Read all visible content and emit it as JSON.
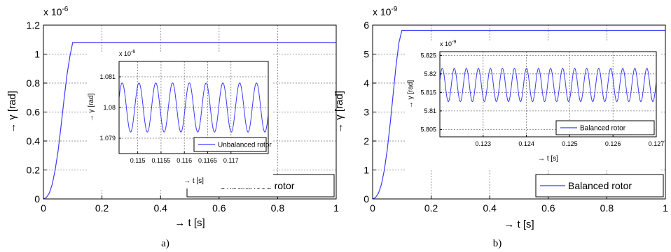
{
  "figure": {
    "captions": [
      "a)",
      "b)"
    ]
  },
  "chart_data": [
    {
      "id": "a",
      "type": "line",
      "xlabel": "→ t [s]",
      "ylabel": "→ γ [rad]",
      "y_exponent_label": "x 10",
      "y_exponent_power": "-6",
      "xlim": [
        0,
        1
      ],
      "ylim": [
        0,
        1.2
      ],
      "xticks": [
        0,
        0.2,
        0.4,
        0.6,
        0.8,
        1
      ],
      "xtick_labels": [
        "0",
        "0.2",
        "0.4",
        "0.6",
        "0.8",
        "1"
      ],
      "yticks": [
        0,
        0.2,
        0.4,
        0.6,
        0.8,
        1,
        1.2
      ],
      "ytick_labels": [
        "0",
        "0.2",
        "0.4",
        "0.6",
        "0.8",
        "1",
        "1.2"
      ],
      "grid": true,
      "legend": {
        "position": "bottom-right",
        "entries": [
          "Unbalanced rotor"
        ]
      },
      "series": [
        {
          "name": "Unbalanced rotor",
          "color": "#3a3aff",
          "x": [
            0,
            0.01,
            0.02,
            0.03,
            0.04,
            0.05,
            0.06,
            0.07,
            0.08,
            0.09,
            0.1,
            0.2,
            0.4,
            0.6,
            0.8,
            1.0
          ],
          "y": [
            0,
            0.01,
            0.04,
            0.1,
            0.2,
            0.33,
            0.5,
            0.68,
            0.85,
            0.98,
            1.08,
            1.08,
            1.08,
            1.08,
            1.08,
            1.08
          ]
        }
      ],
      "inset": {
        "type": "line",
        "xlabel": "→ t [s]",
        "ylabel": "→ γ [rad]",
        "y_exponent_label": "x 10",
        "y_exponent_power": "-6",
        "xlim": [
          0.1146,
          0.1178
        ],
        "ylim": [
          1.0785,
          1.0815
        ],
        "xticks": [
          0.115,
          0.1155,
          0.116,
          0.1165,
          0.117
        ],
        "xtick_labels": [
          "0.115",
          "0.1155",
          "0.116",
          "0.1165",
          "0.117"
        ],
        "yticks": [
          1.079,
          1.08,
          1.081
        ],
        "ytick_labels": [
          "1.079",
          "1.08",
          "1.081"
        ],
        "grid": true,
        "legend": {
          "position": "bottom-right",
          "entries": [
            "Unbalanced rotor"
          ]
        },
        "series": [
          {
            "name": "Unbalanced rotor",
            "color": "#3a3aff",
            "mean": 1.08,
            "amplitude": 0.0008,
            "period": 0.00036,
            "phase": 0.4
          }
        ]
      }
    },
    {
      "id": "b",
      "type": "line",
      "xlabel": "→ t [s]",
      "ylabel": "→ γ [rad]",
      "y_exponent_label": "x 10",
      "y_exponent_power": "-9",
      "xlim": [
        0,
        1
      ],
      "ylim": [
        0,
        6
      ],
      "xticks": [
        0,
        0.2,
        0.4,
        0.6,
        0.8,
        1
      ],
      "xtick_labels": [
        "0",
        "0.2",
        "0.4",
        "0.6",
        "0.8",
        "1"
      ],
      "yticks": [
        0,
        1,
        2,
        3,
        4,
        5,
        6
      ],
      "ytick_labels": [
        "0",
        "1",
        "2",
        "3",
        "4",
        "5",
        "6"
      ],
      "grid": true,
      "legend": {
        "position": "bottom-right",
        "entries": [
          "Balanced rotor"
        ]
      },
      "series": [
        {
          "name": "Balanced rotor",
          "color": "#3a3aff",
          "x": [
            0,
            0.01,
            0.02,
            0.03,
            0.04,
            0.05,
            0.06,
            0.07,
            0.08,
            0.09,
            0.1,
            0.2,
            0.4,
            0.6,
            0.8,
            1.0
          ],
          "y": [
            0,
            0.05,
            0.2,
            0.5,
            1.0,
            1.7,
            2.6,
            3.6,
            4.6,
            5.4,
            5.82,
            5.82,
            5.82,
            5.82,
            5.82,
            5.82
          ]
        }
      ],
      "inset": {
        "type": "line",
        "xlabel": "→ t [s]",
        "ylabel": "→ γ [rad]",
        "y_exponent_label": "x 10",
        "y_exponent_power": "-9",
        "xlim": [
          0.122,
          0.127
        ],
        "ylim": [
          5.803,
          5.826
        ],
        "xticks": [
          0.123,
          0.124,
          0.125,
          0.126,
          0.127
        ],
        "xtick_labels": [
          "0.123",
          "0.124",
          "0.125",
          "0.126",
          "0.127"
        ],
        "yticks": [
          5.805,
          5.81,
          5.815,
          5.82,
          5.825
        ],
        "ytick_labels": [
          "5.805",
          "5.81",
          "5.815",
          "5.82",
          "5.825"
        ],
        "grid": true,
        "legend": {
          "position": "bottom-right",
          "entries": [
            "Balanced rotor"
          ]
        },
        "series": [
          {
            "name": "Balanced rotor",
            "color": "#3a3aff",
            "mean": 5.817,
            "amplitude": 0.0045,
            "period": 0.000278,
            "phase": 0.3
          }
        ]
      }
    }
  ]
}
